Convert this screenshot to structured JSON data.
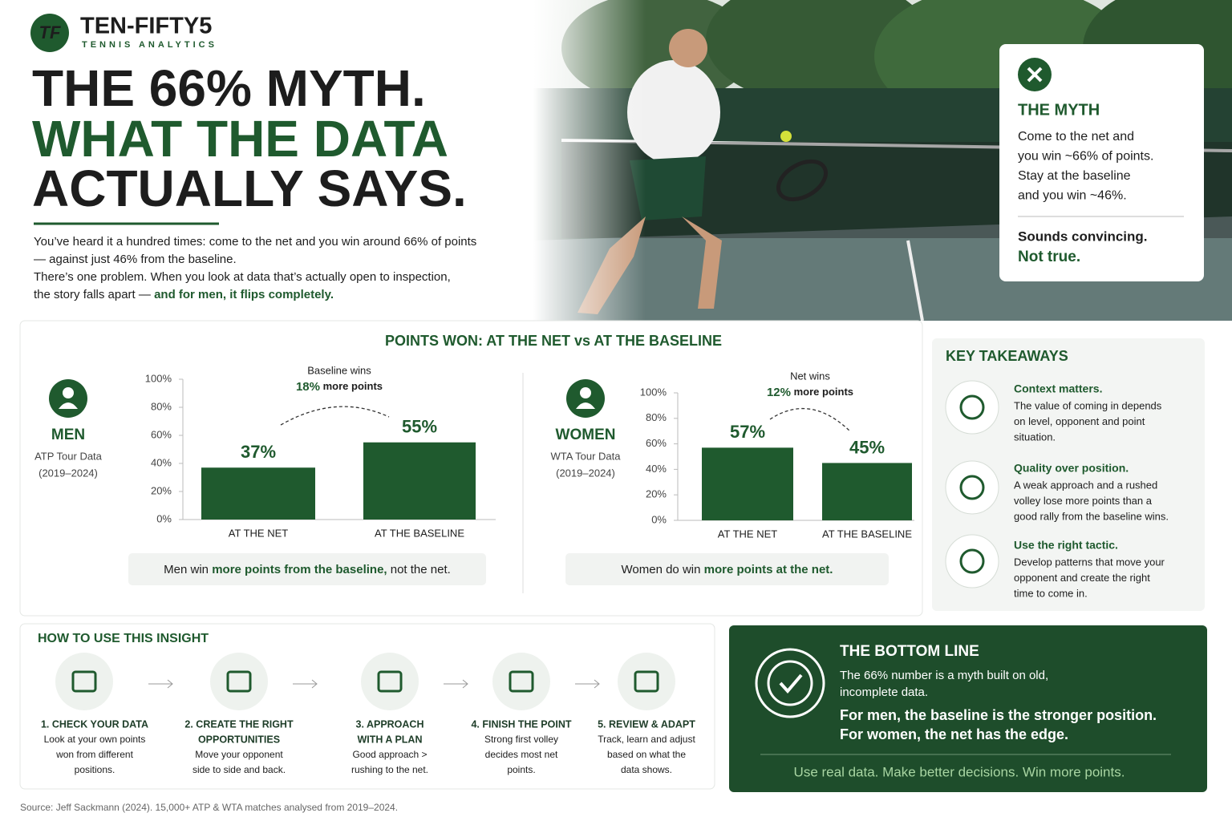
{
  "header": {
    "brand": "TEN-FIFTY5",
    "tagline": "TENNIS ANALYTICS"
  },
  "hero": {
    "title_lines": [
      "THE 66% MYTH.",
      "WHAT THE DATA",
      "ACTUALLY SAYS."
    ],
    "intro": [
      {
        "text": "You’ve heard it a hundred times: come to the net and you win around 66% of points"
      },
      {
        "text": "— against just 46% from the baseline."
      },
      {
        "text": "There’s one problem. When you look at data that’s actually open to inspection,"
      },
      {
        "text": "the story falls apart — ",
        "strong": "and for men, it flips completely."
      }
    ]
  },
  "myth": {
    "heading": "THE MYTH",
    "lines": [
      "Come to the net and",
      "you win ~66% of points.",
      "Stay at the baseline",
      "and you win ~46%."
    ],
    "verdict": "Sounds convincing.",
    "punch": "Not true."
  },
  "comparison": {
    "title": "POINTS WON: AT THE NET vs AT THE BASELINE"
  },
  "chart_data": [
    {
      "type": "bar",
      "title": "MEN",
      "source_lines": [
        "ATP Tour Data",
        "(2019–2024)"
      ],
      "categories": [
        "AT THE NET",
        "AT THE BASELINE"
      ],
      "values": [
        37,
        55
      ],
      "value_labels": [
        "37%",
        "55%"
      ],
      "color": "#1f5a2e",
      "ylim": [
        0,
        100
      ],
      "yticks": [
        {
          "value": 0,
          "label": "0%"
        },
        {
          "value": 20,
          "label": "20%"
        },
        {
          "value": 40,
          "label": "40%"
        },
        {
          "value": 60,
          "label": "60%"
        },
        {
          "value": 80,
          "label": "80%"
        },
        {
          "value": 100,
          "label": "100%"
        }
      ],
      "annotation": {
        "lead": "Baseline wins",
        "figure": "18%",
        "rest": "more points"
      },
      "caption": {
        "before": "Men win ",
        "strong": "more points from the baseline,",
        "after": " not the net."
      }
    },
    {
      "type": "bar",
      "title": "WOMEN",
      "source_lines": [
        "WTA Tour Data",
        "(2019–2024)"
      ],
      "categories": [
        "AT THE NET",
        "AT THE BASELINE"
      ],
      "values": [
        57,
        45
      ],
      "value_labels": [
        "57%",
        "45%"
      ],
      "color": "#1f5a2e",
      "ylim": [
        0,
        100
      ],
      "yticks": [
        {
          "value": 0,
          "label": "0%"
        },
        {
          "value": 20,
          "label": "20%"
        },
        {
          "value": 40,
          "label": "40%"
        },
        {
          "value": 60,
          "label": "60%"
        },
        {
          "value": 80,
          "label": "80%"
        },
        {
          "value": 100,
          "label": "100%"
        }
      ],
      "annotation": {
        "lead": "Net wins",
        "figure": "12%",
        "rest": "more points"
      },
      "caption": {
        "before": "Women do win ",
        "strong": "more points at the net."
      }
    }
  ],
  "takeaways": {
    "title": "KEY TAKEAWAYS",
    "items": [
      {
        "heading": "Context matters.",
        "lines": [
          "The value of coming in depends",
          "on level, opponent and point",
          "situation."
        ]
      },
      {
        "heading": "Quality over position.",
        "lines": [
          "A weak approach and a rushed",
          "volley lose more points than a",
          "good rally from the baseline wins."
        ]
      },
      {
        "heading": "Use the right tactic.",
        "lines": [
          "Develop patterns that move your",
          "opponent and create the right",
          "time to come in."
        ]
      }
    ]
  },
  "howto": {
    "title": "HOW TO USE THIS INSIGHT",
    "steps": [
      {
        "title_lines": [
          "1. CHECK YOUR DATA"
        ],
        "lines": [
          "Look at your own points",
          "won from different",
          "positions."
        ]
      },
      {
        "title_lines": [
          "2. CREATE THE RIGHT",
          "OPPORTUNITIES"
        ],
        "lines": [
          "Move your opponent",
          "side to side and back."
        ]
      },
      {
        "title_lines": [
          "3. APPROACH",
          "WITH A PLAN"
        ],
        "lines": [
          "Good approach >",
          "rushing to the net."
        ]
      },
      {
        "title_lines": [
          "4. FINISH THE POINT"
        ],
        "lines": [
          "Strong first volley",
          "decides most net",
          "points."
        ]
      },
      {
        "title_lines": [
          "5. REVIEW & ADAPT"
        ],
        "lines": [
          "Track, learn and adjust",
          "based on what the",
          "data shows."
        ]
      }
    ]
  },
  "bottom_line": {
    "title": "THE BOTTOM LINE",
    "lines": [
      "The 66% number is a myth built on old,",
      "incomplete data."
    ],
    "emphasis": [
      "For men, the baseline is the stronger position.",
      "For women, the net has the edge."
    ],
    "footer": "Use real data. Make better decisions. Win more points."
  },
  "source": "Source: Jeff Sackmann (2024). 15,000+ ATP & WTA matches analysed from 2019–2024."
}
